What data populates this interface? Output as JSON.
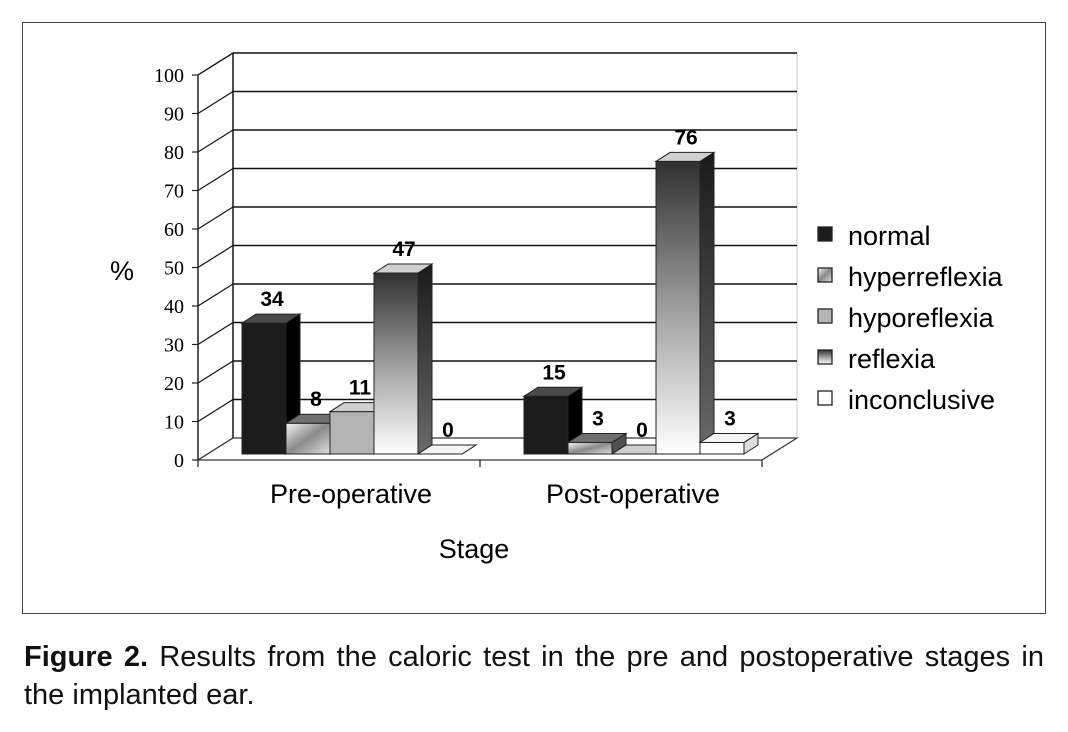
{
  "chart_data": {
    "type": "bar",
    "categories": [
      "Pre-operative",
      "Post-operative"
    ],
    "series": [
      {
        "name": "normal",
        "values": [
          34,
          15
        ]
      },
      {
        "name": "hyperreflexia",
        "values": [
          8,
          3
        ]
      },
      {
        "name": "hyporeflexia",
        "values": [
          11,
          0
        ]
      },
      {
        "name": "reflexia",
        "values": [
          47,
          76
        ]
      },
      {
        "name": "inconclusive",
        "values": [
          0,
          3
        ]
      }
    ],
    "data_labels": [
      [
        "34",
        "8",
        "11",
        "47",
        "0"
      ],
      [
        "15",
        "3",
        "0",
        "76",
        "3"
      ]
    ],
    "xlabel": "Stage",
    "ylabel": "%",
    "ylim": [
      0,
      100
    ],
    "yticks": [
      0,
      10,
      20,
      30,
      40,
      50,
      60,
      70,
      80,
      90,
      100
    ],
    "grid": true,
    "legend_position": "right",
    "style": "3d"
  },
  "caption": {
    "label": "Figure 2.",
    "text": " Results from the caloric test in the pre and postoperative stages in the implanted ear."
  }
}
